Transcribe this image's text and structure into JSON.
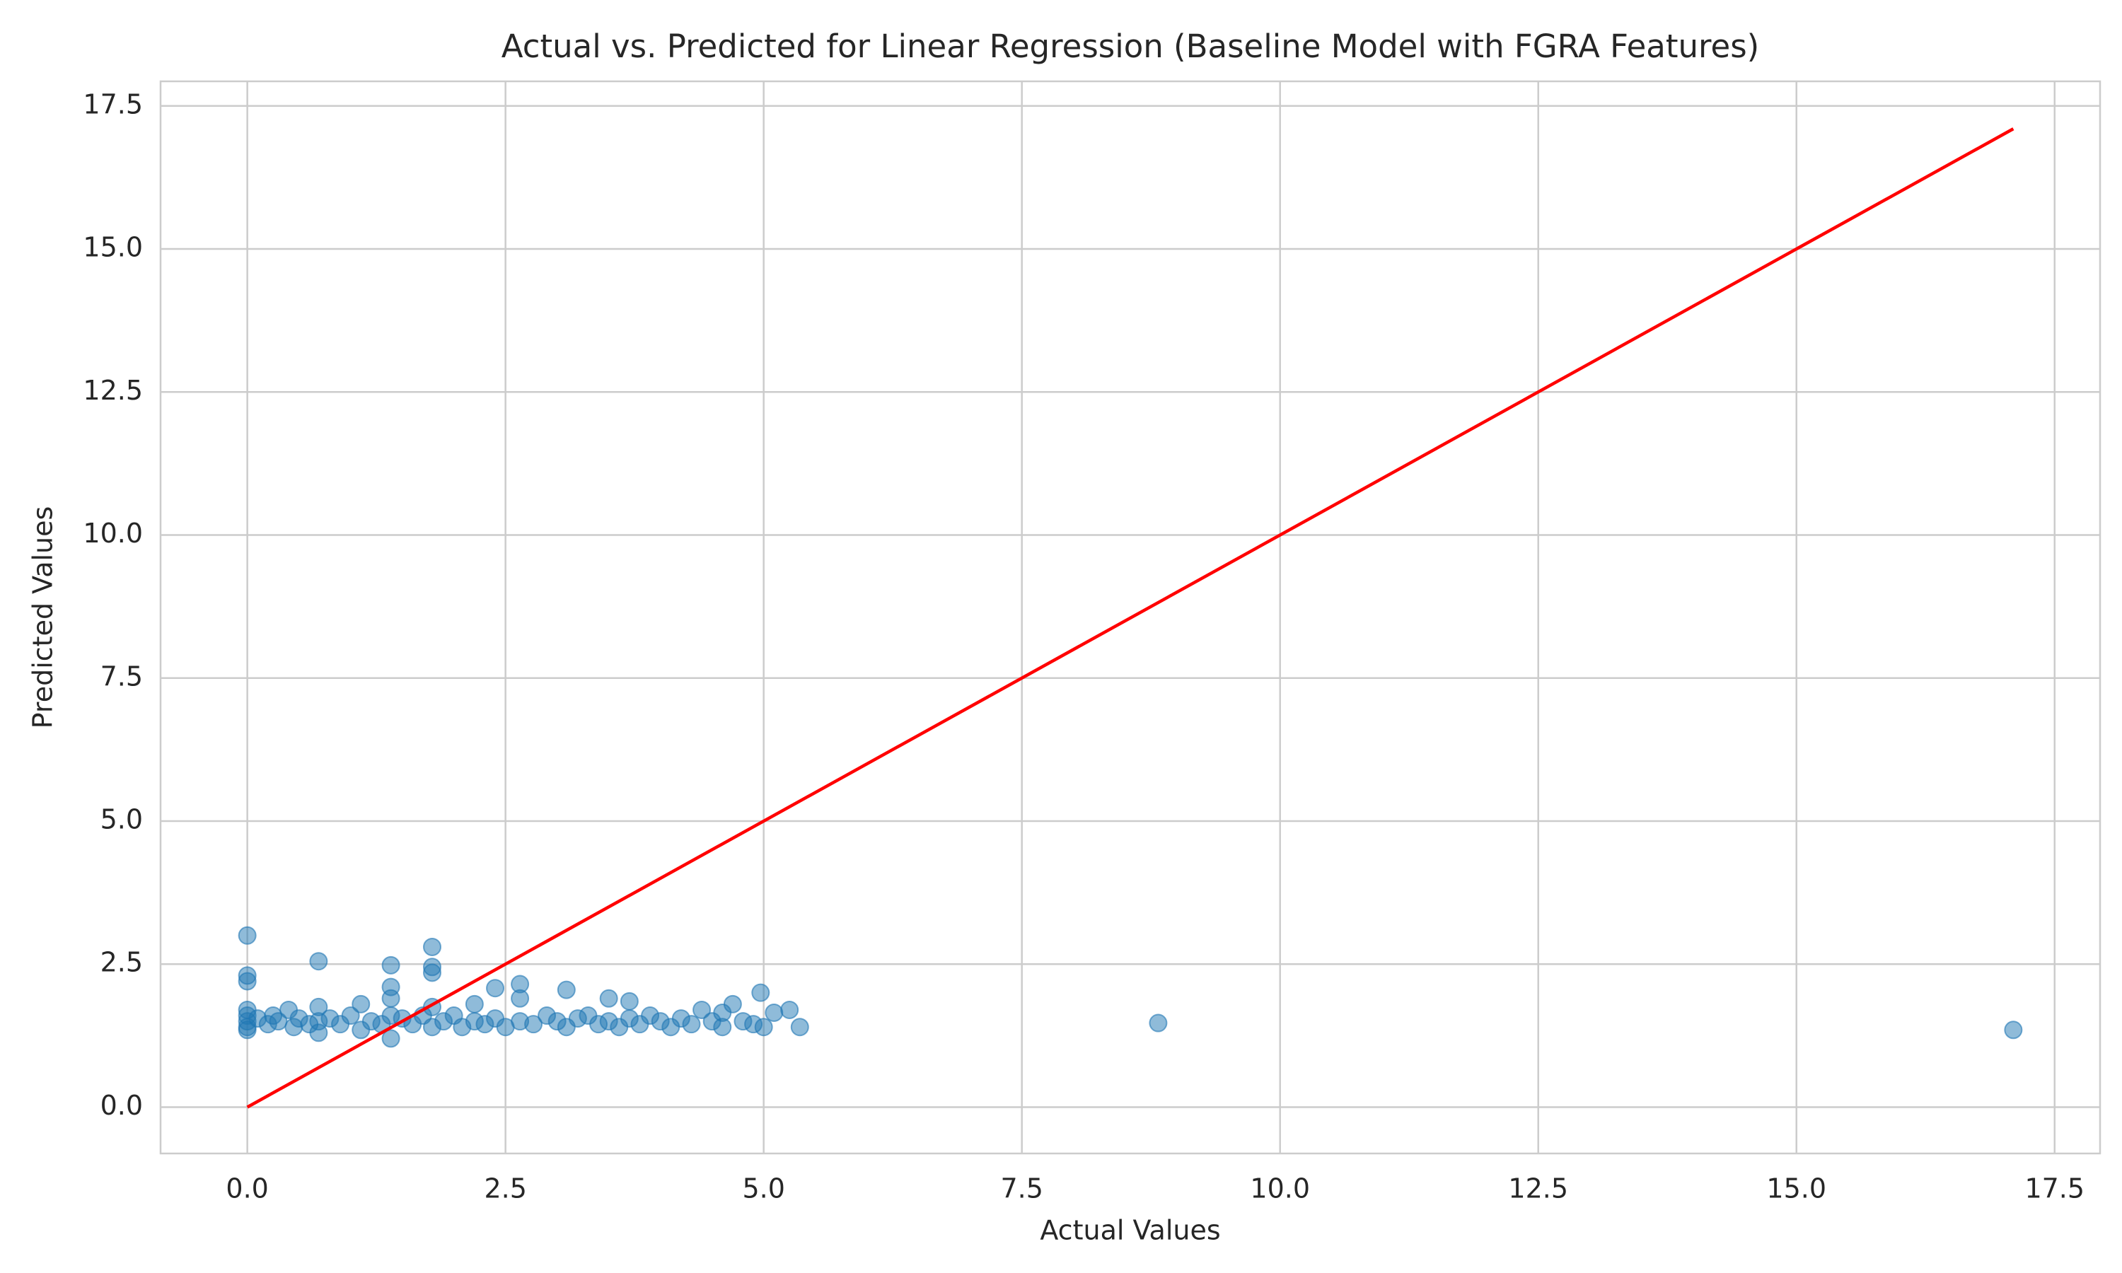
{
  "chart_data": {
    "type": "scatter",
    "title": "Actual vs. Predicted for Linear Regression (Baseline Model with FGRA Features)",
    "x_label": "Actual Values",
    "y_label": "Predicted Values",
    "series": [
      {
        "color": "#1f77b4",
        "x": [
          0,
          0,
          0,
          0,
          0,
          0.1,
          0.2,
          0.25,
          0.3,
          0.4,
          0.45,
          0.5,
          0.6,
          0.69,
          0.69,
          0.69,
          0.8,
          0.9,
          1.0,
          1.1,
          1.1,
          1.2,
          1.3,
          1.39,
          1.39,
          1.39,
          1.39,
          1.39,
          1.5,
          1.6,
          1.7,
          1.79,
          1.79,
          1.79,
          1.79,
          1.79,
          1.9,
          2.0,
          2.08,
          2.2,
          2.2,
          2.3,
          2.4,
          2.4,
          2.5,
          2.64,
          2.64,
          2.64,
          2.77,
          2.9,
          3.0,
          3.09,
          3.09,
          3.2,
          3.3,
          3.4,
          3.5,
          3.5,
          3.6,
          3.7,
          3.7,
          3.8,
          3.9,
          4.0,
          4.1,
          4.2,
          4.3,
          4.4,
          4.5,
          4.6,
          4.6,
          4.7,
          4.8,
          4.9,
          4.97,
          5.0,
          5.1,
          5.25,
          5.35,
          8.82,
          17.1,
          0,
          0,
          0,
          0.69
        ],
        "values": [
          1.5,
          1.6,
          1.4,
          1.7,
          1.35,
          1.55,
          1.45,
          1.6,
          1.5,
          1.7,
          1.4,
          1.55,
          1.45,
          1.3,
          1.5,
          1.75,
          1.55,
          1.45,
          1.6,
          1.35,
          1.8,
          1.5,
          1.45,
          1.2,
          1.6,
          1.9,
          2.1,
          2.48,
          1.55,
          1.45,
          1.6,
          1.4,
          1.75,
          2.35,
          2.45,
          2.8,
          1.5,
          1.6,
          1.4,
          1.8,
          1.5,
          1.45,
          2.08,
          1.55,
          1.4,
          1.9,
          2.15,
          1.5,
          1.45,
          1.6,
          1.5,
          2.05,
          1.4,
          1.55,
          1.6,
          1.45,
          1.9,
          1.5,
          1.4,
          1.85,
          1.55,
          1.45,
          1.6,
          1.5,
          1.4,
          1.55,
          1.45,
          1.7,
          1.5,
          1.4,
          1.65,
          1.8,
          1.5,
          1.45,
          2.0,
          1.4,
          1.65,
          1.7,
          1.4,
          1.47,
          1.35,
          2.2,
          2.3,
          3.0,
          2.55
        ]
      }
    ],
    "reference_line": {
      "x": [
        0,
        17.1
      ],
      "values": [
        0,
        17.1
      ],
      "color": "#ff0000"
    },
    "xlim": [
      -0.84,
      17.94
    ],
    "ylim": [
      -0.81,
      17.93
    ],
    "xticks": [
      {
        "value": 0,
        "label": "0.0"
      },
      {
        "value": 2.5,
        "label": "2.5"
      },
      {
        "value": 5,
        "label": "5.0"
      },
      {
        "value": 7.5,
        "label": "7.5"
      },
      {
        "value": 10,
        "label": "10.0"
      },
      {
        "value": 12.5,
        "label": "12.5"
      },
      {
        "value": 15,
        "label": "15.0"
      },
      {
        "value": 17.5,
        "label": "17.5"
      }
    ],
    "yticks": [
      {
        "value": 0,
        "label": "0.0"
      },
      {
        "value": 2.5,
        "label": "2.5"
      },
      {
        "value": 5,
        "label": "5.0"
      },
      {
        "value": 7.5,
        "label": "7.5"
      },
      {
        "value": 10,
        "label": "10.0"
      },
      {
        "value": 12.5,
        "label": "12.5"
      },
      {
        "value": 15,
        "label": "15.0"
      },
      {
        "value": 17.5,
        "label": "17.5"
      }
    ],
    "grid": true
  }
}
